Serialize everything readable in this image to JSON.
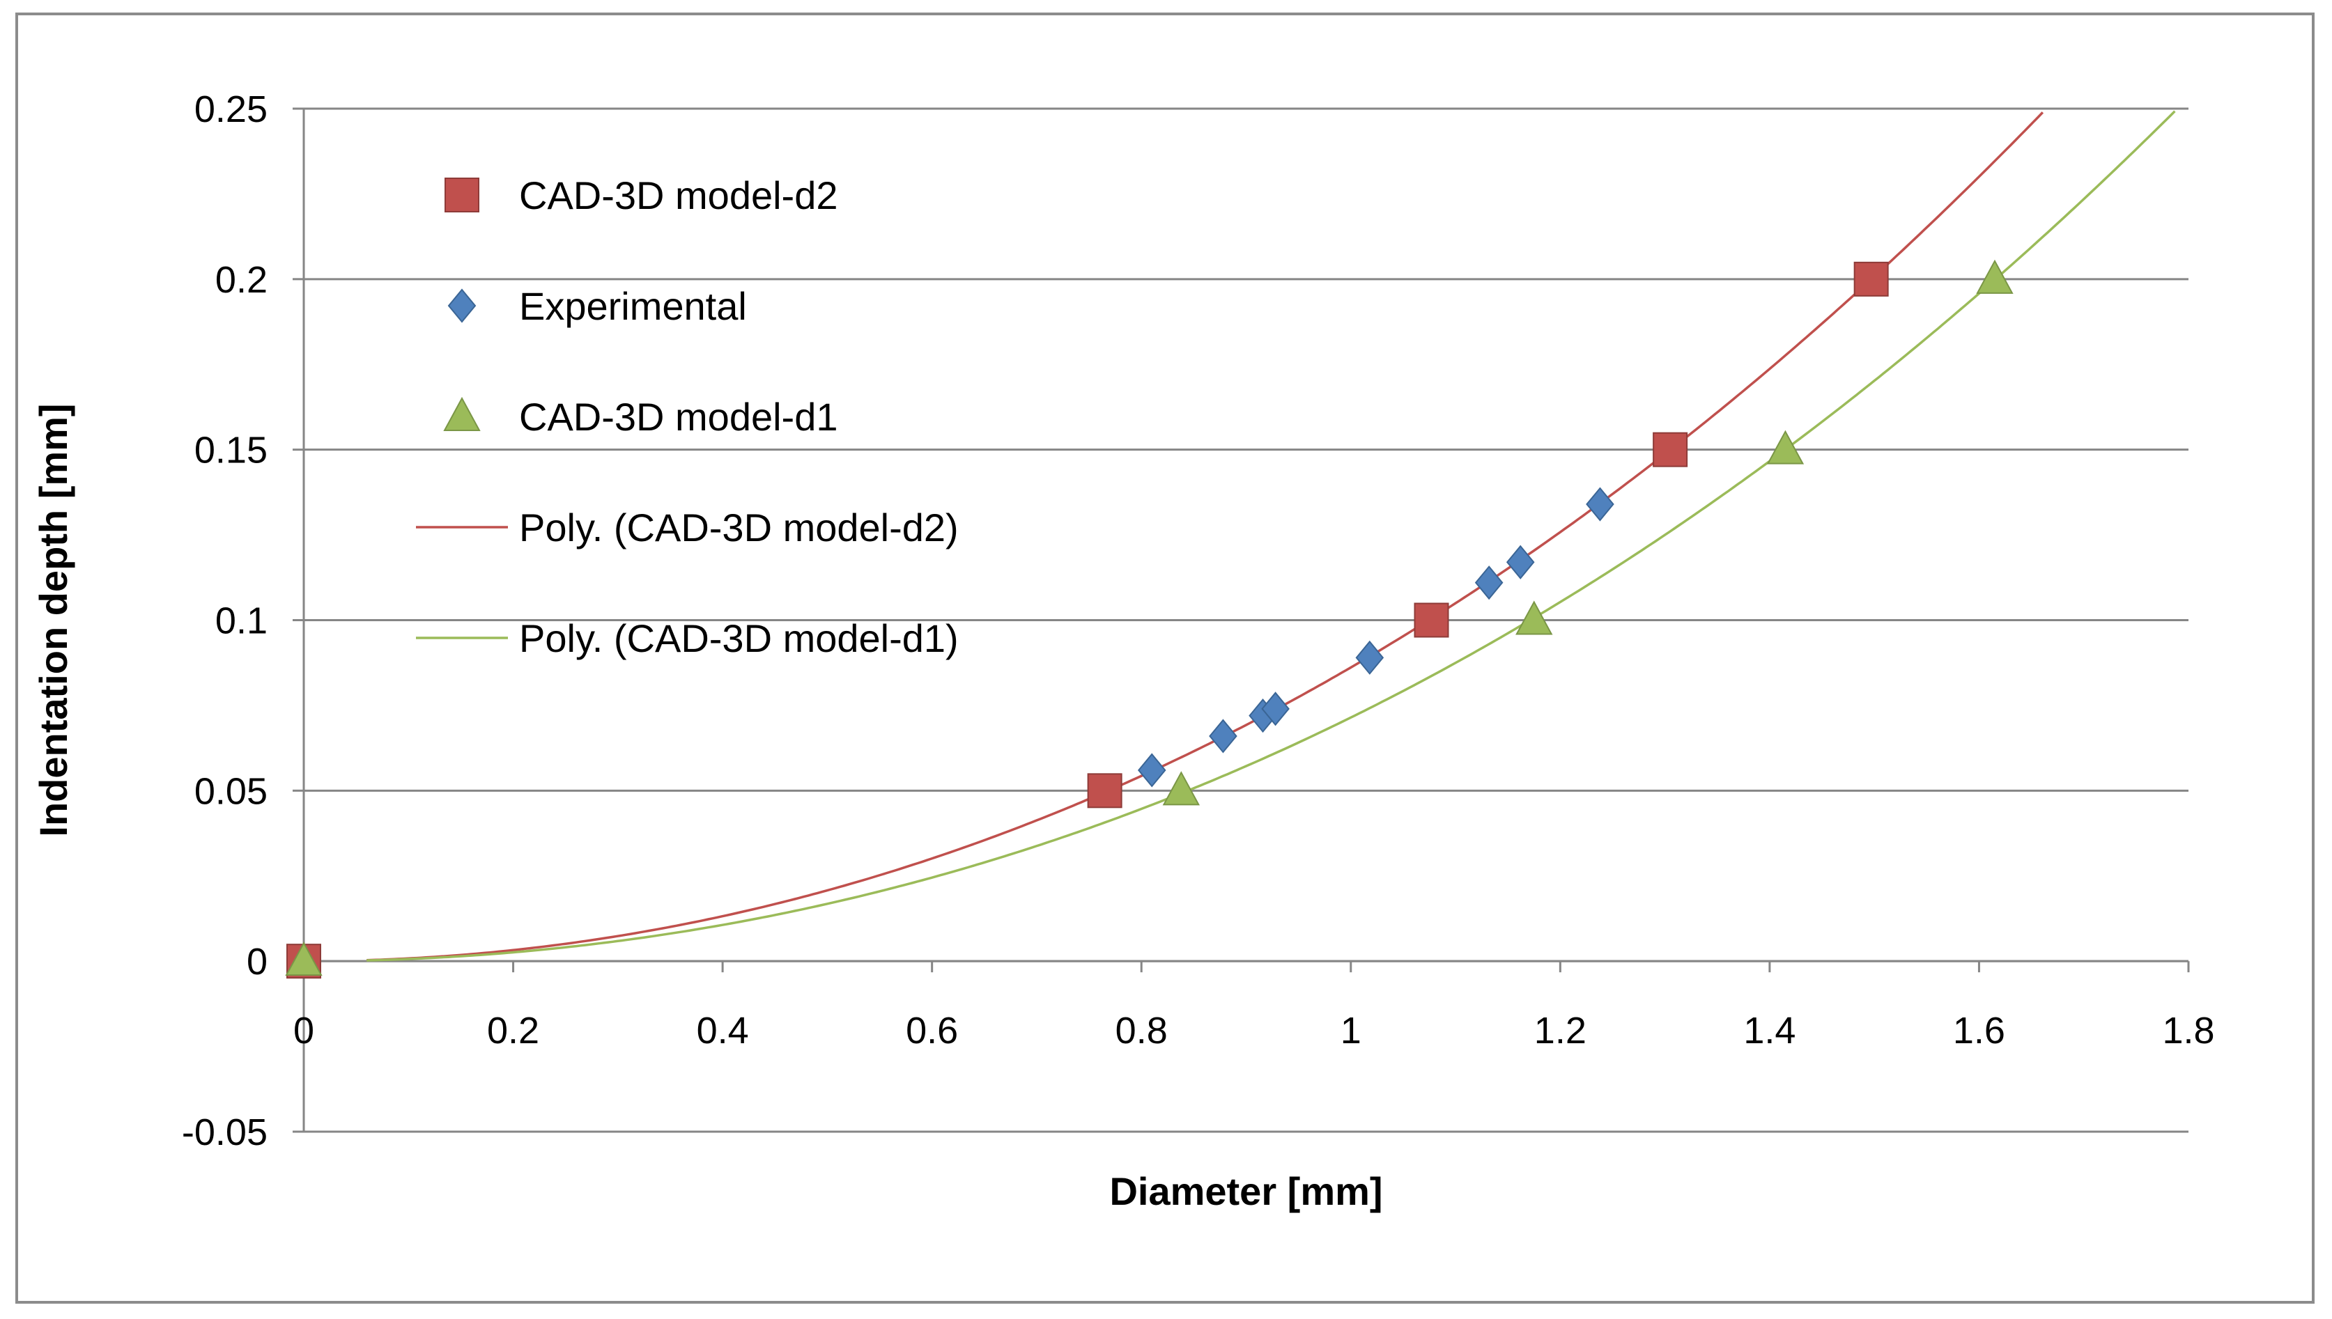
{
  "chart_data": {
    "type": "scatter",
    "title": "",
    "xlabel": "Diameter [mm]",
    "ylabel": "Indentation depth [mm]",
    "xlim": [
      0,
      1.8
    ],
    "ylim": [
      -0.05,
      0.25
    ],
    "x_ticks": [
      "0",
      "0.2",
      "0.4",
      "0.6",
      "0.8",
      "1",
      "1.2",
      "1.4",
      "1.6",
      "1.8"
    ],
    "y_ticks": [
      "-0.05",
      "0",
      "0.05",
      "0.1",
      "0.15",
      "0.2",
      "0.25"
    ],
    "grid": "horizontal",
    "legend_position": "top-left inside plot",
    "series": [
      {
        "name": "CAD-3D model-d2",
        "marker": "square",
        "color": "#C0504D",
        "points": [
          [
            0,
            0
          ],
          [
            0.765,
            0.05
          ],
          [
            1.077,
            0.1
          ],
          [
            1.305,
            0.15
          ],
          [
            1.497,
            0.2
          ]
        ]
      },
      {
        "name": "Experimental",
        "marker": "diamond",
        "color": "#4F81BD",
        "points": [
          [
            0.81,
            0.056
          ],
          [
            0.878,
            0.066
          ],
          [
            0.916,
            0.072
          ],
          [
            0.928,
            0.074
          ],
          [
            1.018,
            0.089
          ],
          [
            1.132,
            0.111
          ],
          [
            1.162,
            0.117
          ],
          [
            1.238,
            0.134
          ]
        ]
      },
      {
        "name": "CAD-3D model-d1",
        "marker": "triangle",
        "color": "#9BBB59",
        "points": [
          [
            0,
            0
          ],
          [
            0.838,
            0.05
          ],
          [
            1.175,
            0.1
          ],
          [
            1.415,
            0.15
          ],
          [
            1.615,
            0.2
          ]
        ]
      }
    ],
    "trendlines": [
      {
        "name": "Poly. (CAD-3D model-d2)",
        "color": "#C0504D",
        "of": "CAD-3D model-d2"
      },
      {
        "name": "Poly. (CAD-3D model-d1)",
        "color": "#9BBB59",
        "of": "CAD-3D model-d1"
      }
    ]
  }
}
